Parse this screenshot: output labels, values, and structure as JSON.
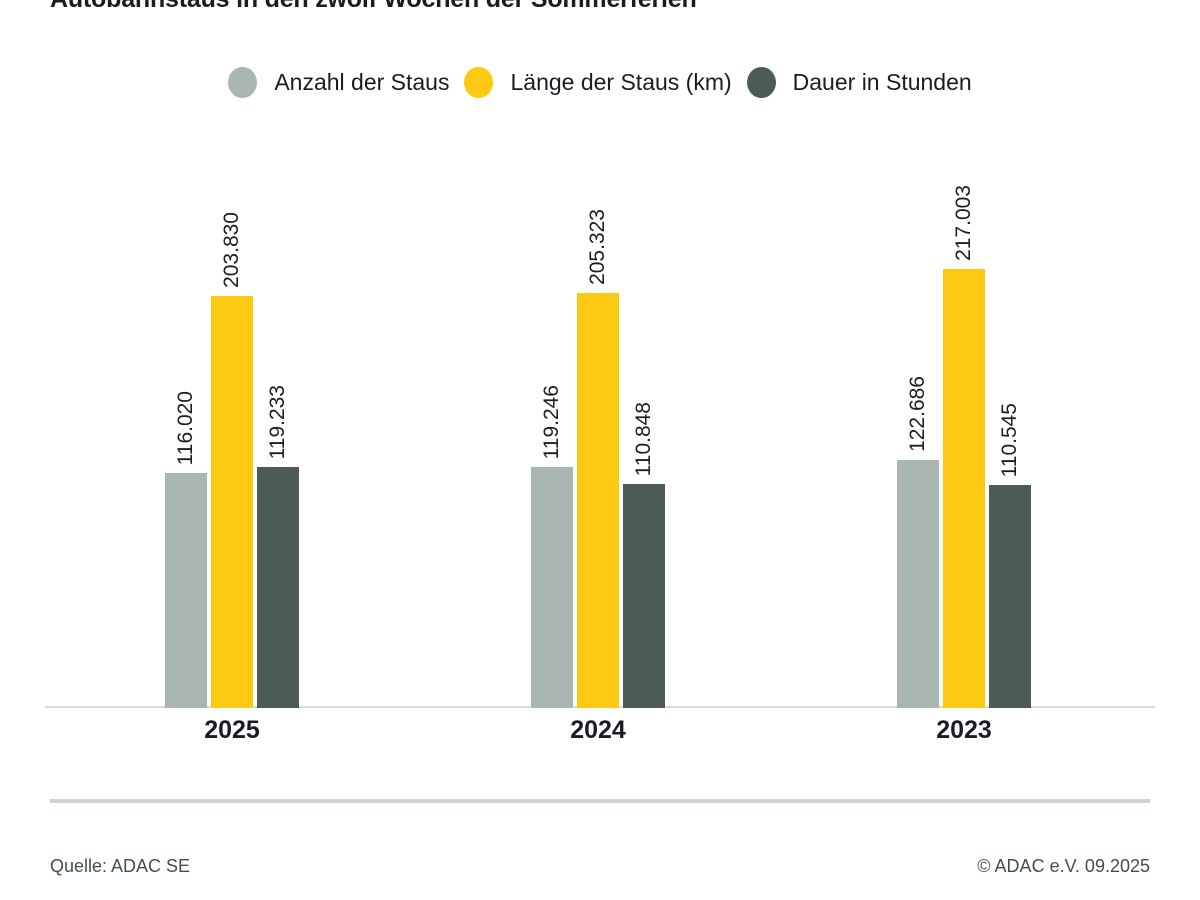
{
  "page": {
    "title": "Autobahnstaus in den zwölf Wochen der Sommerferien",
    "source": "Quelle: ADAC SE",
    "copyright": "© ADAC e.V. 09.2025"
  },
  "colors": {
    "series_gray": "#a9b6b2",
    "series_yellow": "#fdc912",
    "series_dark": "#4d5b58",
    "text_dark": "#1b1b24",
    "footer_text": "#41504d",
    "baseline": "#d8dddc",
    "separator": "#ccd5d2"
  },
  "legend": [
    {
      "label": "Anzahl der Staus",
      "color": "#a9b6b2"
    },
    {
      "label": "Länge der Staus (km)",
      "color": "#fdc912"
    },
    {
      "label": "Dauer in Stunden",
      "color": "#4d5b58"
    }
  ],
  "chart_data": {
    "type": "bar",
    "title": "Autobahnstaus in den zwölf Wochen der Sommerferien",
    "categories": [
      "2025",
      "2024",
      "2023"
    ],
    "series": [
      {
        "name": "Anzahl der Staus",
        "color": "#a9b6b2",
        "values": [
          116020,
          119246,
          122686
        ],
        "value_labels": [
          "116.020",
          "119.246",
          "122.686"
        ]
      },
      {
        "name": "Länge der Staus (km)",
        "color": "#fdc912",
        "values": [
          203830,
          205323,
          217003
        ],
        "value_labels": [
          "203.830",
          "205.323",
          "217.003"
        ]
      },
      {
        "name": "Dauer in Stunden",
        "color": "#4d5b58",
        "values": [
          119233,
          110848,
          110545
        ],
        "value_labels": [
          "119.233",
          "110.848",
          "110.545"
        ]
      }
    ],
    "ylim": [
      0,
      230000
    ],
    "grid": false,
    "legend_position": "top",
    "value_labels_rotated": true,
    "xlabel": "",
    "ylabel": ""
  }
}
